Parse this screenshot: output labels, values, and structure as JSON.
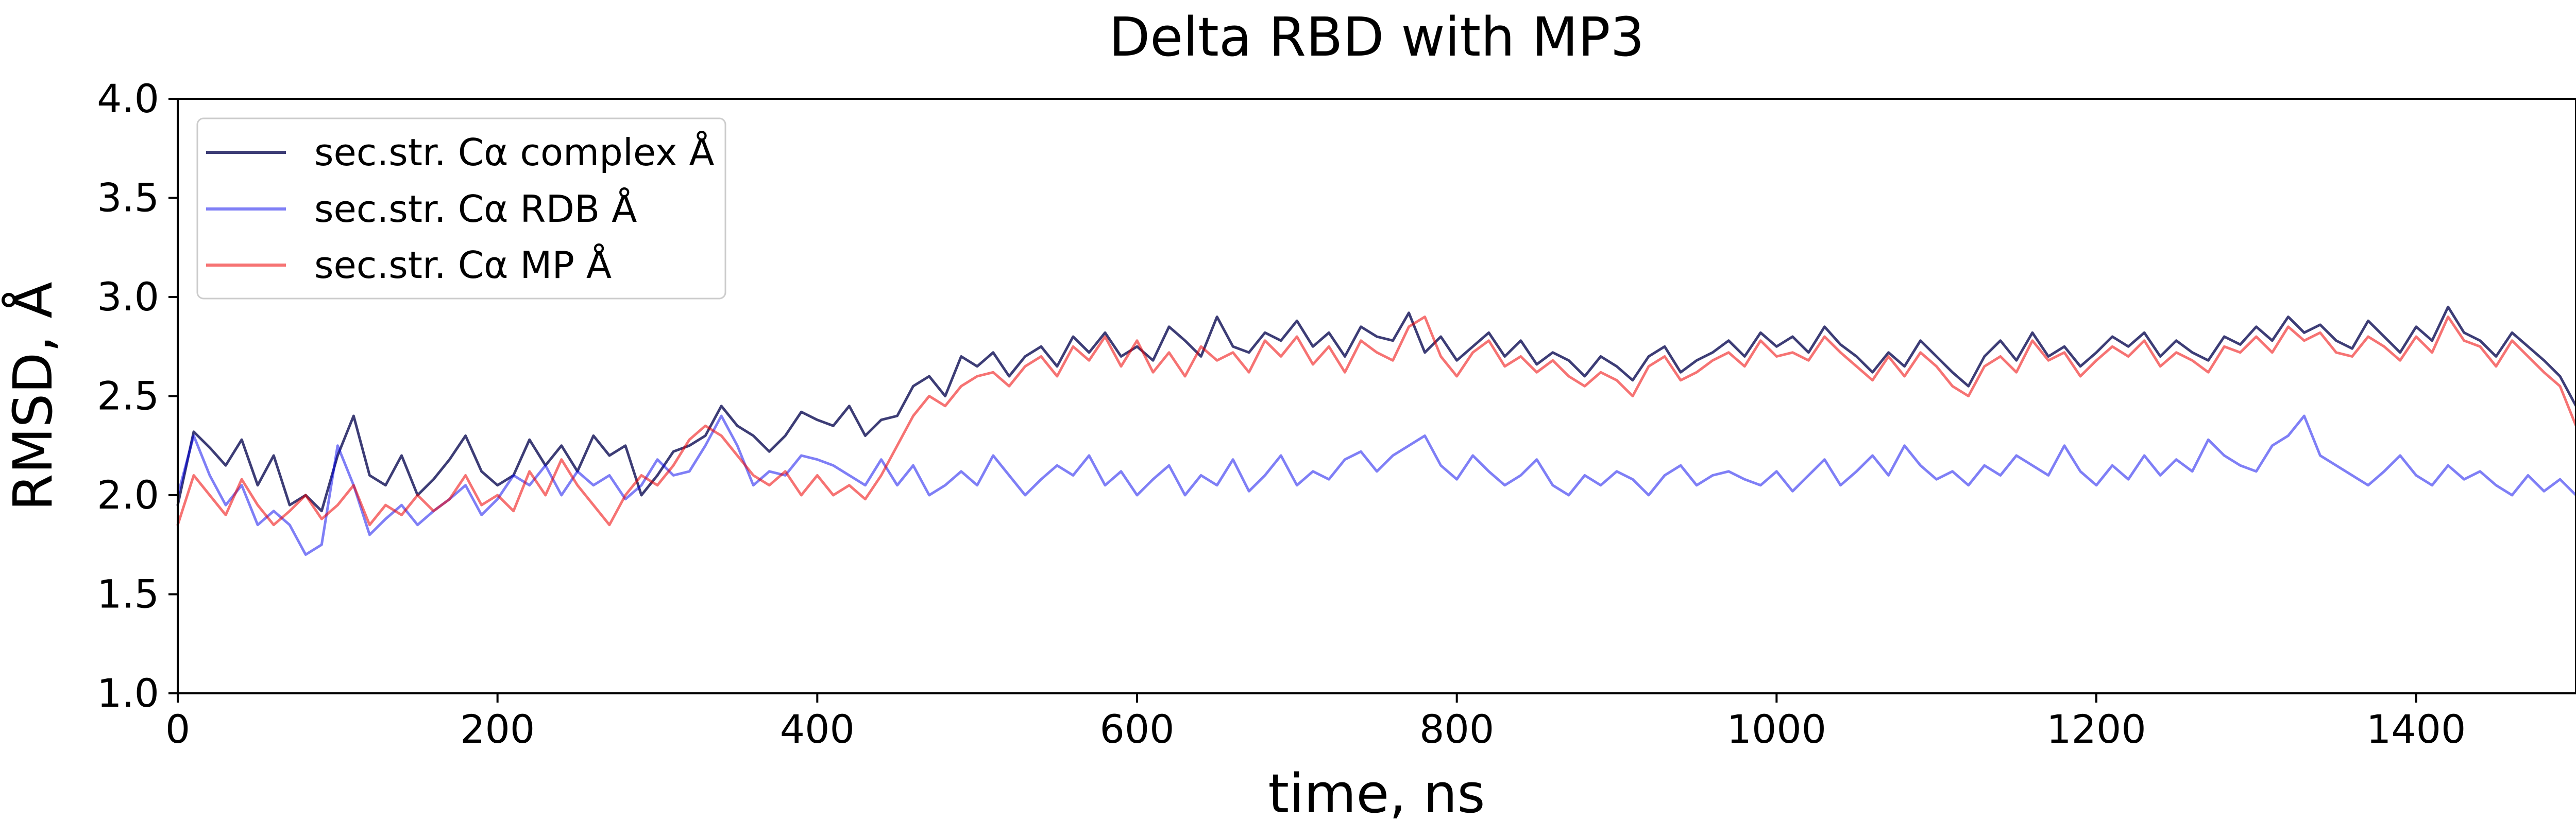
{
  "chart_data": {
    "type": "line",
    "title": "Delta RBD with MP3",
    "xlabel": "time, ns",
    "ylabel": "RMSD, Å",
    "xlim": [
      0,
      1500
    ],
    "ylim": [
      1.0,
      4.0
    ],
    "xticks": [
      0,
      200,
      400,
      600,
      800,
      1000,
      1200,
      1400
    ],
    "yticks": [
      1.0,
      1.5,
      2.0,
      2.5,
      3.0,
      3.5,
      4.0
    ],
    "grid": false,
    "legend": {
      "position": "top-left"
    },
    "x": [
      0,
      10,
      20,
      30,
      40,
      50,
      60,
      70,
      80,
      90,
      100,
      110,
      120,
      130,
      140,
      150,
      160,
      170,
      180,
      190,
      200,
      210,
      220,
      230,
      240,
      250,
      260,
      270,
      280,
      290,
      300,
      310,
      320,
      330,
      340,
      350,
      360,
      370,
      380,
      390,
      400,
      410,
      420,
      430,
      440,
      450,
      460,
      470,
      480,
      490,
      500,
      510,
      520,
      530,
      540,
      550,
      560,
      570,
      580,
      590,
      600,
      610,
      620,
      630,
      640,
      650,
      660,
      670,
      680,
      690,
      700,
      710,
      720,
      730,
      740,
      750,
      760,
      770,
      780,
      790,
      800,
      810,
      820,
      830,
      840,
      850,
      860,
      870,
      880,
      890,
      900,
      910,
      920,
      930,
      940,
      950,
      960,
      970,
      980,
      990,
      1000,
      1010,
      1020,
      1030,
      1040,
      1050,
      1060,
      1070,
      1080,
      1090,
      1100,
      1110,
      1120,
      1130,
      1140,
      1150,
      1160,
      1170,
      1180,
      1190,
      1200,
      1210,
      1220,
      1230,
      1240,
      1250,
      1260,
      1270,
      1280,
      1290,
      1300,
      1310,
      1320,
      1330,
      1340,
      1350,
      1360,
      1370,
      1380,
      1390,
      1400,
      1410,
      1420,
      1430,
      1440,
      1450,
      1460,
      1470,
      1480,
      1490,
      1500
    ],
    "series": [
      {
        "name": "sec.str. Cα complex Å",
        "color": "#1b1b5e",
        "opacity": 0.85,
        "values": [
          1.95,
          2.32,
          2.24,
          2.15,
          2.28,
          2.05,
          2.2,
          1.95,
          2.0,
          1.92,
          2.2,
          2.4,
          2.1,
          2.05,
          2.2,
          2.0,
          2.08,
          2.18,
          2.3,
          2.12,
          2.05,
          2.1,
          2.28,
          2.15,
          2.25,
          2.12,
          2.3,
          2.2,
          2.25,
          2.0,
          2.1,
          2.22,
          2.25,
          2.3,
          2.45,
          2.35,
          2.3,
          2.22,
          2.3,
          2.42,
          2.38,
          2.35,
          2.45,
          2.3,
          2.38,
          2.4,
          2.55,
          2.6,
          2.5,
          2.7,
          2.65,
          2.72,
          2.6,
          2.7,
          2.75,
          2.65,
          2.8,
          2.72,
          2.82,
          2.7,
          2.75,
          2.68,
          2.85,
          2.78,
          2.7,
          2.9,
          2.75,
          2.72,
          2.82,
          2.78,
          2.88,
          2.75,
          2.82,
          2.7,
          2.85,
          2.8,
          2.78,
          2.92,
          2.72,
          2.8,
          2.68,
          2.75,
          2.82,
          2.7,
          2.78,
          2.66,
          2.72,
          2.68,
          2.6,
          2.7,
          2.65,
          2.58,
          2.7,
          2.75,
          2.62,
          2.68,
          2.72,
          2.78,
          2.7,
          2.82,
          2.75,
          2.8,
          2.72,
          2.85,
          2.76,
          2.7,
          2.62,
          2.72,
          2.65,
          2.78,
          2.7,
          2.62,
          2.55,
          2.7,
          2.78,
          2.68,
          2.82,
          2.7,
          2.75,
          2.65,
          2.72,
          2.8,
          2.75,
          2.82,
          2.7,
          2.78,
          2.72,
          2.68,
          2.8,
          2.76,
          2.85,
          2.78,
          2.9,
          2.82,
          2.86,
          2.78,
          2.74,
          2.88,
          2.8,
          2.72,
          2.85,
          2.78,
          2.95,
          2.82,
          2.78,
          2.7,
          2.82,
          2.75,
          2.68,
          2.6,
          2.45
        ]
      },
      {
        "name": "sec.str. Cα RDB Å",
        "color": "#0000ee",
        "opacity": 0.5,
        "values": [
          2.0,
          2.3,
          2.1,
          1.95,
          2.05,
          1.85,
          1.92,
          1.85,
          1.7,
          1.75,
          2.25,
          2.05,
          1.8,
          1.88,
          1.95,
          1.85,
          1.92,
          1.98,
          2.05,
          1.9,
          1.98,
          2.1,
          2.05,
          2.15,
          2.0,
          2.12,
          2.05,
          2.1,
          1.98,
          2.05,
          2.18,
          2.1,
          2.12,
          2.25,
          2.4,
          2.25,
          2.05,
          2.12,
          2.1,
          2.2,
          2.18,
          2.15,
          2.1,
          2.05,
          2.18,
          2.05,
          2.15,
          2.0,
          2.05,
          2.12,
          2.05,
          2.2,
          2.1,
          2.0,
          2.08,
          2.15,
          2.1,
          2.2,
          2.05,
          2.12,
          2.0,
          2.08,
          2.15,
          2.0,
          2.1,
          2.05,
          2.18,
          2.02,
          2.1,
          2.2,
          2.05,
          2.12,
          2.08,
          2.18,
          2.22,
          2.12,
          2.2,
          2.25,
          2.3,
          2.15,
          2.08,
          2.2,
          2.12,
          2.05,
          2.1,
          2.18,
          2.05,
          2.0,
          2.1,
          2.05,
          2.12,
          2.08,
          2.0,
          2.1,
          2.15,
          2.05,
          2.1,
          2.12,
          2.08,
          2.05,
          2.12,
          2.02,
          2.1,
          2.18,
          2.05,
          2.12,
          2.2,
          2.1,
          2.25,
          2.15,
          2.08,
          2.12,
          2.05,
          2.15,
          2.1,
          2.2,
          2.15,
          2.1,
          2.25,
          2.12,
          2.05,
          2.15,
          2.08,
          2.2,
          2.1,
          2.18,
          2.12,
          2.28,
          2.2,
          2.15,
          2.12,
          2.25,
          2.3,
          2.4,
          2.2,
          2.15,
          2.1,
          2.05,
          2.12,
          2.2,
          2.1,
          2.05,
          2.15,
          2.08,
          2.12,
          2.05,
          2.0,
          2.1,
          2.02,
          2.08,
          2.0
        ]
      },
      {
        "name": "sec.str. Cα MP Å",
        "color": "#ee0000",
        "opacity": 0.55,
        "values": [
          1.85,
          2.1,
          2.0,
          1.9,
          2.08,
          1.95,
          1.85,
          1.92,
          2.0,
          1.88,
          1.95,
          2.05,
          1.85,
          1.95,
          1.9,
          2.0,
          1.92,
          1.98,
          2.1,
          1.95,
          2.0,
          1.92,
          2.12,
          2.0,
          2.18,
          2.05,
          1.95,
          1.85,
          2.0,
          2.1,
          2.05,
          2.15,
          2.28,
          2.35,
          2.3,
          2.2,
          2.1,
          2.05,
          2.12,
          2.0,
          2.1,
          2.0,
          2.05,
          1.98,
          2.1,
          2.25,
          2.4,
          2.5,
          2.45,
          2.55,
          2.6,
          2.62,
          2.55,
          2.65,
          2.7,
          2.6,
          2.75,
          2.68,
          2.8,
          2.65,
          2.78,
          2.62,
          2.72,
          2.6,
          2.75,
          2.68,
          2.72,
          2.62,
          2.78,
          2.7,
          2.8,
          2.66,
          2.75,
          2.62,
          2.78,
          2.72,
          2.68,
          2.85,
          2.9,
          2.7,
          2.6,
          2.72,
          2.78,
          2.65,
          2.7,
          2.62,
          2.68,
          2.6,
          2.55,
          2.62,
          2.58,
          2.5,
          2.65,
          2.7,
          2.58,
          2.62,
          2.68,
          2.72,
          2.65,
          2.78,
          2.7,
          2.72,
          2.68,
          2.8,
          2.72,
          2.65,
          2.58,
          2.7,
          2.6,
          2.72,
          2.65,
          2.55,
          2.5,
          2.65,
          2.7,
          2.62,
          2.78,
          2.68,
          2.72,
          2.6,
          2.68,
          2.75,
          2.7,
          2.78,
          2.65,
          2.72,
          2.68,
          2.62,
          2.75,
          2.72,
          2.8,
          2.72,
          2.85,
          2.78,
          2.82,
          2.72,
          2.7,
          2.8,
          2.75,
          2.68,
          2.8,
          2.72,
          2.9,
          2.78,
          2.75,
          2.65,
          2.78,
          2.7,
          2.62,
          2.55,
          2.35
        ]
      }
    ]
  }
}
